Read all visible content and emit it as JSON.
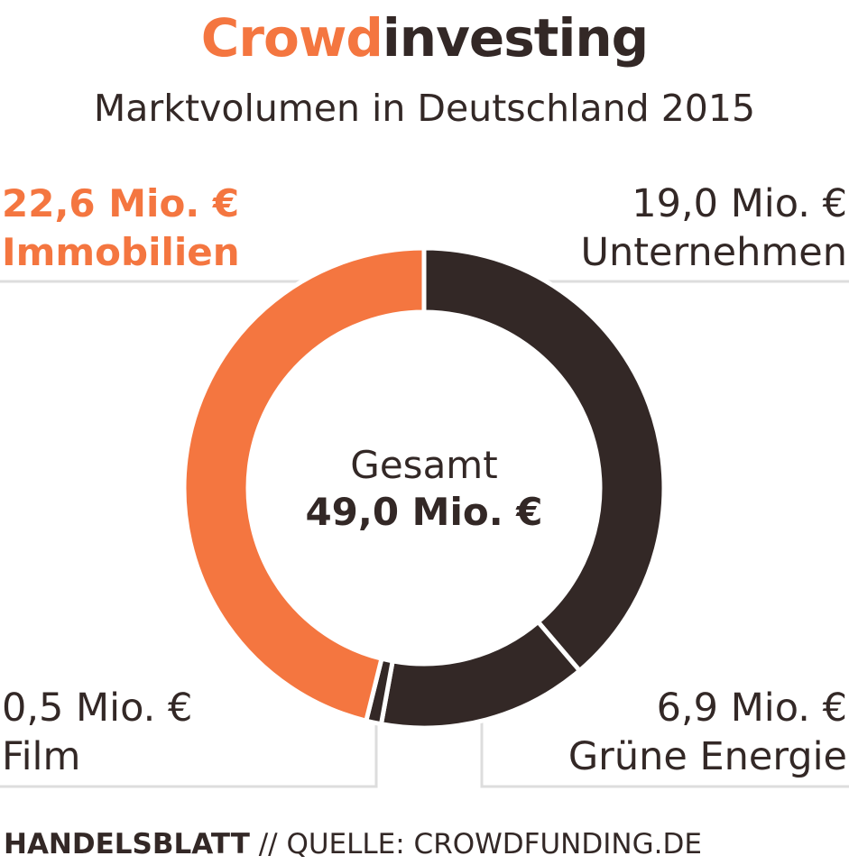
{
  "header": {
    "title_part1": "Crowd",
    "title_part2": "investing",
    "subtitle": "Marktvolumen in Deutschland 2015"
  },
  "chart_data": {
    "type": "pie",
    "variant": "donut",
    "title": "Crowdinvesting",
    "subtitle": "Marktvolumen in Deutschland 2015",
    "center_caption": "Gesamt",
    "center_total_label": "49,0 Mio. €",
    "total": 49.0,
    "unit": "Mio. €",
    "slices": [
      {
        "name": "Unternehmen",
        "value": 19.0,
        "value_label": "19,0 Mio. €",
        "color": "#332826"
      },
      {
        "name": "Grüne Energie",
        "value": 6.9,
        "value_label": "6,9 Mio. €",
        "color": "#332826"
      },
      {
        "name": "Film",
        "value": 0.5,
        "value_label": "0,5 Mio. €",
        "color": "#332826"
      },
      {
        "name": "Immobilien",
        "value": 22.6,
        "value_label": "22,6 Mio. €",
        "color": "#f47640"
      }
    ]
  },
  "footer": {
    "brand": "HANDELSBLATT",
    "source": " // QUELLE: CROWDFUNDING.DE"
  },
  "colors": {
    "accent": "#f47640",
    "dark": "#332826",
    "leader_line": "#dddddd"
  }
}
